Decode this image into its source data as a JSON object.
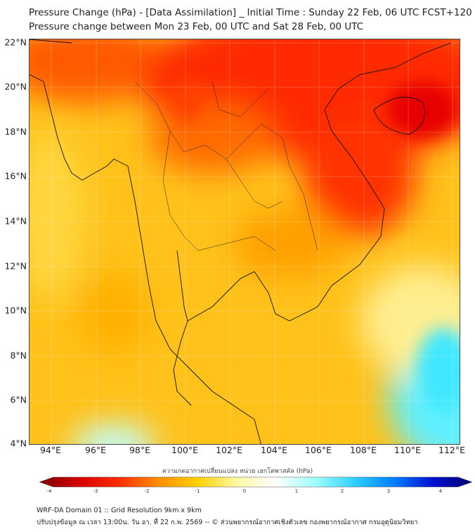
{
  "title": {
    "line1": "Pressure Change (hPa) - [Data Assimilation] _ Initial Time : Sunday 22 Feb, 06 UTC FCST+120",
    "line2": "Pressure change between Mon 23 Feb, 00 UTC and Sat 28 Feb, 00 UTC"
  },
  "lat_labels": [
    "22°N",
    "20°N",
    "18°N",
    "16°N",
    "14°N",
    "12°N",
    "10°N",
    "8°N",
    "6°N",
    "4°N"
  ],
  "lon_labels": [
    "94°E",
    "96°E",
    "98°E",
    "100°E",
    "102°E",
    "104°E",
    "106°E",
    "108°E",
    "110°E",
    "112°E"
  ],
  "colorbar": {
    "title": "ความกดอากาศเปลี่ยนแปลง หน่วย เฮกโตพาสคัล (hPa)",
    "ticks": [
      "-4",
      "-3",
      "-2",
      "-1",
      "0",
      "1",
      "2",
      "3",
      "4"
    ],
    "range": [
      -4,
      4
    ],
    "colors": [
      "#7a0000",
      "#d40000",
      "#ff2a00",
      "#ff8c00",
      "#ffd000",
      "#fff8a0",
      "#ffffff",
      "#a0ffff",
      "#30d0ff",
      "#0080ff",
      "#0010d0",
      "#000070"
    ]
  },
  "footer": {
    "line1": "WRF-DA Domain 01 :: Grid Resolution 9km x 9km",
    "line2": "ปรับปรุงข้อมูล ณ เวลา 13:00น. วัน อา. ที่ 22 ก.พ. 2569 -- © ส่วนพยากรณ์อากาศเชิงตัวเลข กองพยากรณ์อากาศ กรมอุตุนิยมวิทยา"
  }
}
